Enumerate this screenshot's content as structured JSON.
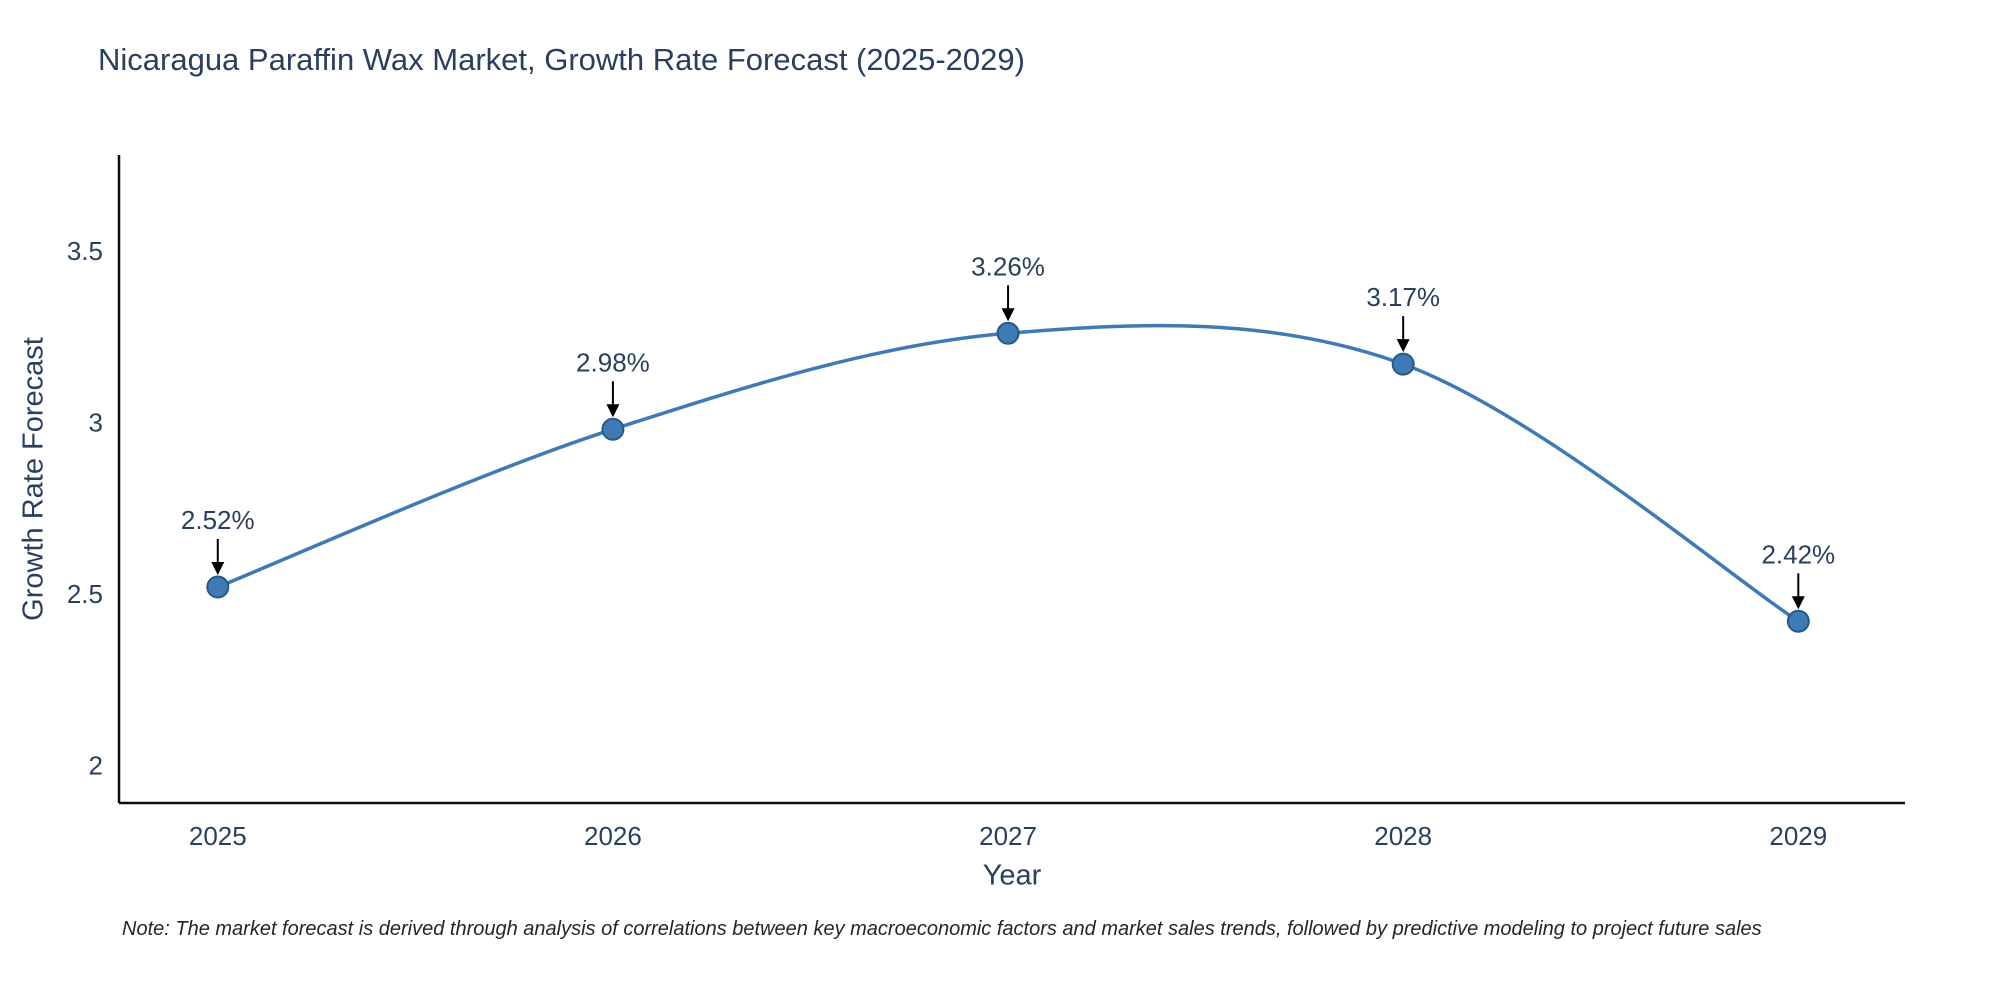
{
  "title": "Nicaragua Paraffin Wax Market, Growth Rate Forecast (2025-2029)",
  "note": "Note: The market forecast is derived through analysis of correlations between key macroeconomic factors and market sales trends, followed by predictive modeling to project future sales",
  "chart_data": {
    "type": "line",
    "title": "Nicaragua Paraffin Wax Market, Growth Rate Forecast (2025-2029)",
    "x": [
      2025,
      2026,
      2027,
      2028,
      2029
    ],
    "series": [
      {
        "name": "Growth Rate Forecast",
        "values": [
          2.52,
          2.98,
          3.26,
          3.17,
          2.42
        ]
      }
    ],
    "data_labels": [
      "2.52%",
      "2.98%",
      "3.26%",
      "3.17%",
      "2.42%"
    ],
    "xlabel": "Year",
    "ylabel": "Growth Rate Forecast",
    "xticks": [
      2025,
      2026,
      2027,
      2028,
      2029
    ],
    "yticks": [
      2,
      2.5,
      3,
      3.5
    ],
    "xlim": [
      2024.75,
      2029.27
    ],
    "ylim": [
      1.89,
      3.78
    ],
    "grid": false,
    "legend": "none",
    "line_shape": "spline",
    "line_color": "#3f7ab5",
    "marker_color": "#3f7ab5",
    "marker_edge_color": "#265a87",
    "annotation_arrow_color": "#000000",
    "axis_line_color": "#0d0d0d",
    "text_color": "#2a3f5f"
  }
}
